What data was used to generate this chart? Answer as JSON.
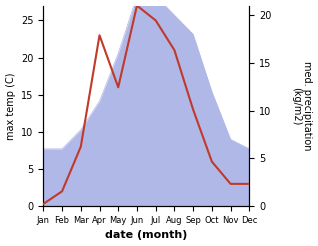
{
  "months": [
    "Jan",
    "Feb",
    "Mar",
    "Apr",
    "May",
    "Jun",
    "Jul",
    "Aug",
    "Sep",
    "Oct",
    "Nov",
    "Dec"
  ],
  "temperature": [
    0.3,
    2.0,
    8.0,
    23.0,
    16.0,
    27.0,
    25.0,
    21.0,
    13.0,
    6.0,
    3.0,
    3.0
  ],
  "precipitation": [
    6.0,
    6.0,
    8.0,
    11.0,
    16.0,
    22.0,
    22.0,
    20.0,
    18.0,
    12.0,
    7.0,
    6.0
  ],
  "temp_color": "#c0392b",
  "precip_fill_color": "#b0b8e8",
  "precip_edge_color": "#9099cc",
  "ylabel_left": "max temp (C)",
  "ylabel_right": "med. precipitation\n(kg/m2)",
  "xlabel": "date (month)",
  "ylim_left": [
    0,
    27
  ],
  "ylim_right": [
    0,
    21
  ],
  "yticks_left": [
    0,
    5,
    10,
    15,
    20,
    25
  ],
  "yticks_right": [
    0,
    5,
    10,
    15,
    20
  ],
  "background_color": "#ffffff"
}
